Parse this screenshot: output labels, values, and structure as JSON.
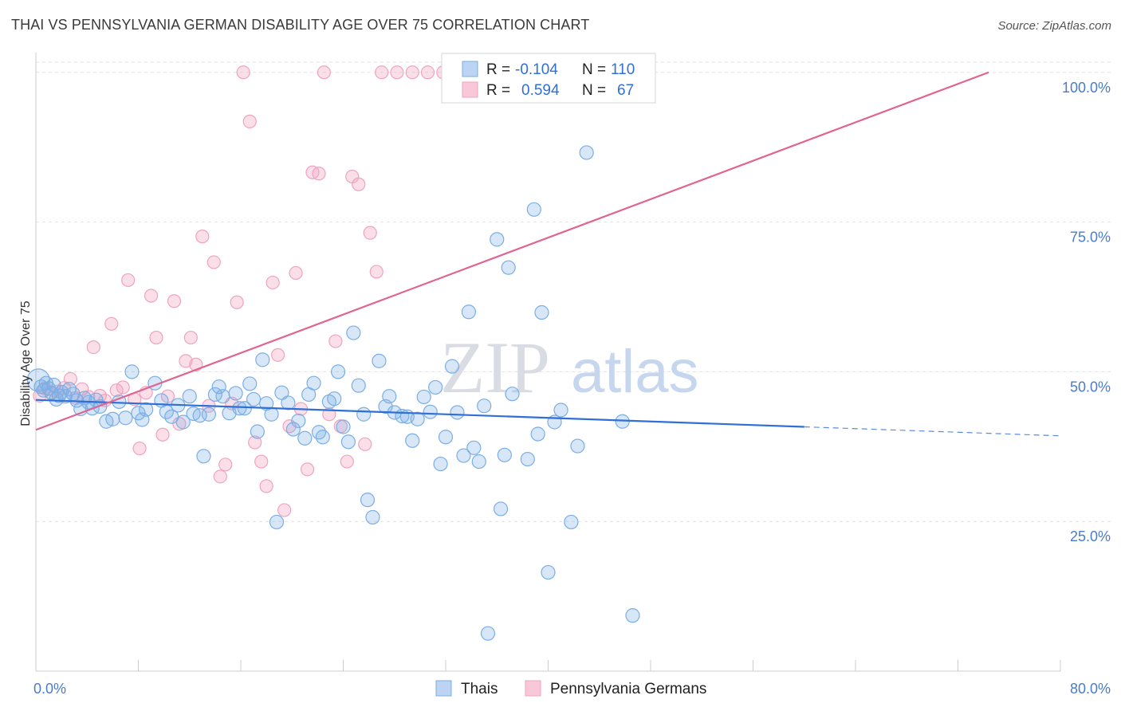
{
  "title": "THAI VS PENNSYLVANIA GERMAN DISABILITY AGE OVER 75 CORRELATION CHART",
  "source": "Source: ZipAtlas.com",
  "watermark": {
    "zip": "ZIP",
    "atlas": "atlas"
  },
  "chart_data": {
    "type": "scatter",
    "title": "THAI VS PENNSYLVANIA GERMAN DISABILITY AGE OVER 75 CORRELATION CHART",
    "xlabel": "",
    "ylabel": "Disability Age Over 75",
    "xlim": [
      0,
      80
    ],
    "ylim": [
      0,
      102.5
    ],
    "x_tick_labels": [
      "0.0%",
      "80.0%"
    ],
    "y_tick_labels": [
      "25.0%",
      "50.0%",
      "75.0%",
      "100.0%"
    ],
    "y_ticks": [
      25,
      50,
      75,
      100
    ],
    "grid": true,
    "legend": [
      {
        "series": "Thais",
        "r_label": "R =",
        "r_value": "-0.104",
        "n_label": "N =",
        "n_value": "110"
      },
      {
        "series": "Pennsylvania Germans",
        "r_label": "R =",
        "r_value": "0.594",
        "n_label": "N =",
        "n_value": "67"
      }
    ],
    "legend_position": "top-center",
    "series": [
      {
        "name": "Thais",
        "color": "#7aaee6",
        "trend": {
          "x0": 0,
          "y0": 45.3,
          "x1": 60,
          "y1": 40.8,
          "dashed_to_x": 80,
          "dashed_to_y": 39.3,
          "color": "#2f6fd6"
        },
        "points": [
          [
            0.2,
            48.6
          ],
          [
            0.4,
            47.5
          ],
          [
            0.6,
            46.9
          ],
          [
            0.8,
            48.1
          ],
          [
            1.0,
            47.2
          ],
          [
            1.2,
            46.5
          ],
          [
            1.4,
            47.8
          ],
          [
            1.6,
            45.4
          ],
          [
            1.8,
            46.0
          ],
          [
            2.0,
            46.6
          ],
          [
            2.3,
            45.9
          ],
          [
            2.6,
            47.1
          ],
          [
            2.9,
            46.3
          ],
          [
            3.2,
            45.2
          ],
          [
            3.5,
            43.8
          ],
          [
            3.8,
            45.6
          ],
          [
            4.1,
            44.9
          ],
          [
            4.4,
            43.9
          ],
          [
            4.7,
            45.3
          ],
          [
            5.0,
            44.2
          ],
          [
            5.5,
            41.7
          ],
          [
            6.0,
            42.1
          ],
          [
            6.5,
            45.0
          ],
          [
            7.0,
            42.3
          ],
          [
            7.5,
            50.0
          ],
          [
            8.0,
            43.1
          ],
          [
            8.3,
            42.0
          ],
          [
            8.6,
            43.7
          ],
          [
            9.3,
            48.1
          ],
          [
            9.8,
            45.2
          ],
          [
            10.2,
            43.3
          ],
          [
            10.6,
            42.5
          ],
          [
            11.1,
            44.4
          ],
          [
            11.5,
            41.6
          ],
          [
            12.0,
            45.9
          ],
          [
            12.3,
            43.0
          ],
          [
            12.8,
            42.7
          ],
          [
            13.1,
            35.9
          ],
          [
            13.5,
            42.9
          ],
          [
            14.0,
            46.2
          ],
          [
            14.3,
            47.5
          ],
          [
            14.6,
            45.9
          ],
          [
            15.1,
            43.1
          ],
          [
            15.6,
            46.4
          ],
          [
            15.9,
            43.9
          ],
          [
            16.3,
            43.9
          ],
          [
            16.7,
            48.0
          ],
          [
            17.0,
            45.4
          ],
          [
            17.3,
            40.0
          ],
          [
            17.7,
            52.0
          ],
          [
            18.0,
            44.7
          ],
          [
            18.4,
            42.9
          ],
          [
            18.8,
            24.9
          ],
          [
            19.2,
            46.5
          ],
          [
            19.7,
            44.8
          ],
          [
            20.1,
            40.4
          ],
          [
            20.5,
            41.8
          ],
          [
            21.0,
            38.9
          ],
          [
            21.3,
            46.2
          ],
          [
            21.7,
            48.1
          ],
          [
            22.1,
            39.9
          ],
          [
            22.4,
            39.1
          ],
          [
            22.9,
            45.0
          ],
          [
            23.3,
            45.5
          ],
          [
            23.6,
            50.0
          ],
          [
            24.0,
            40.8
          ],
          [
            24.4,
            38.3
          ],
          [
            24.8,
            56.5
          ],
          [
            25.2,
            47.7
          ],
          [
            25.6,
            42.9
          ],
          [
            25.9,
            28.6
          ],
          [
            26.3,
            25.7
          ],
          [
            26.8,
            51.8
          ],
          [
            27.3,
            44.2
          ],
          [
            27.6,
            45.9
          ],
          [
            28.0,
            43.2
          ],
          [
            28.6,
            42.6
          ],
          [
            29.0,
            42.5
          ],
          [
            29.4,
            38.5
          ],
          [
            29.8,
            42.1
          ],
          [
            30.3,
            45.8
          ],
          [
            30.8,
            43.3
          ],
          [
            31.2,
            47.4
          ],
          [
            31.6,
            34.6
          ],
          [
            32.0,
            39.1
          ],
          [
            32.5,
            50.9
          ],
          [
            32.9,
            43.2
          ],
          [
            33.4,
            36.0
          ],
          [
            33.8,
            60.0
          ],
          [
            34.2,
            37.3
          ],
          [
            34.6,
            35.0
          ],
          [
            35.0,
            44.3
          ],
          [
            35.3,
            6.3
          ],
          [
            36.0,
            72.1
          ],
          [
            36.3,
            27.1
          ],
          [
            36.6,
            36.1
          ],
          [
            36.9,
            67.4
          ],
          [
            37.2,
            46.3
          ],
          [
            38.4,
            35.4
          ],
          [
            38.9,
            77.1
          ],
          [
            39.2,
            39.6
          ],
          [
            39.5,
            59.9
          ],
          [
            40.0,
            16.5
          ],
          [
            40.5,
            41.6
          ],
          [
            41.0,
            43.6
          ],
          [
            41.8,
            24.9
          ],
          [
            42.3,
            37.6
          ],
          [
            43.0,
            86.6
          ],
          [
            45.8,
            41.7
          ],
          [
            46.6,
            9.3
          ]
        ]
      },
      {
        "name": "Pennsylvania Germans",
        "color": "#f0a3bf",
        "trend": {
          "x0": 0,
          "y0": 40.3,
          "x1": 74.4,
          "y1": 100.0,
          "color": "#e06591"
        },
        "points": [
          [
            0.3,
            46.0
          ],
          [
            0.7,
            47.2
          ],
          [
            1.2,
            46.5
          ],
          [
            1.7,
            46.7
          ],
          [
            2.2,
            47.3
          ],
          [
            2.7,
            48.8
          ],
          [
            3.1,
            45.6
          ],
          [
            3.6,
            47.1
          ],
          [
            4.1,
            45.8
          ],
          [
            4.5,
            54.1
          ],
          [
            5.0,
            46.0
          ],
          [
            5.4,
            45.2
          ],
          [
            5.9,
            58.0
          ],
          [
            6.3,
            46.9
          ],
          [
            6.8,
            47.4
          ],
          [
            7.2,
            65.3
          ],
          [
            7.7,
            45.4
          ],
          [
            8.1,
            37.2
          ],
          [
            8.6,
            46.5
          ],
          [
            9.0,
            62.7
          ],
          [
            9.4,
            55.7
          ],
          [
            9.9,
            39.5
          ],
          [
            10.3,
            45.9
          ],
          [
            10.8,
            61.8
          ],
          [
            11.2,
            41.3
          ],
          [
            11.7,
            51.8
          ],
          [
            12.1,
            55.7
          ],
          [
            12.5,
            51.2
          ],
          [
            13.0,
            72.6
          ],
          [
            13.5,
            44.3
          ],
          [
            13.9,
            68.3
          ],
          [
            14.4,
            32.5
          ],
          [
            14.8,
            34.5
          ],
          [
            15.3,
            44.7
          ],
          [
            15.7,
            61.6
          ],
          [
            16.2,
            100.0
          ],
          [
            16.7,
            91.8
          ],
          [
            17.1,
            38.2
          ],
          [
            17.6,
            35.0
          ],
          [
            18.0,
            30.9
          ],
          [
            18.5,
            64.9
          ],
          [
            18.9,
            52.8
          ],
          [
            19.4,
            26.9
          ],
          [
            19.8,
            40.9
          ],
          [
            20.3,
            66.5
          ],
          [
            20.7,
            43.8
          ],
          [
            21.2,
            33.7
          ],
          [
            21.6,
            83.3
          ],
          [
            22.1,
            83.1
          ],
          [
            22.5,
            100.0
          ],
          [
            22.9,
            42.9
          ],
          [
            23.4,
            55.1
          ],
          [
            23.8,
            40.9
          ],
          [
            24.3,
            35.0
          ],
          [
            24.7,
            82.6
          ],
          [
            25.2,
            81.3
          ],
          [
            25.7,
            37.9
          ],
          [
            26.1,
            73.2
          ],
          [
            26.6,
            66.7
          ],
          [
            27.0,
            100.0
          ],
          [
            28.2,
            100.0
          ],
          [
            29.4,
            100.0
          ],
          [
            30.6,
            100.0
          ],
          [
            31.8,
            100.0
          ],
          [
            33.0,
            100.0
          ],
          [
            34.2,
            100.0
          ],
          [
            35.4,
            100.0
          ]
        ]
      }
    ]
  }
}
